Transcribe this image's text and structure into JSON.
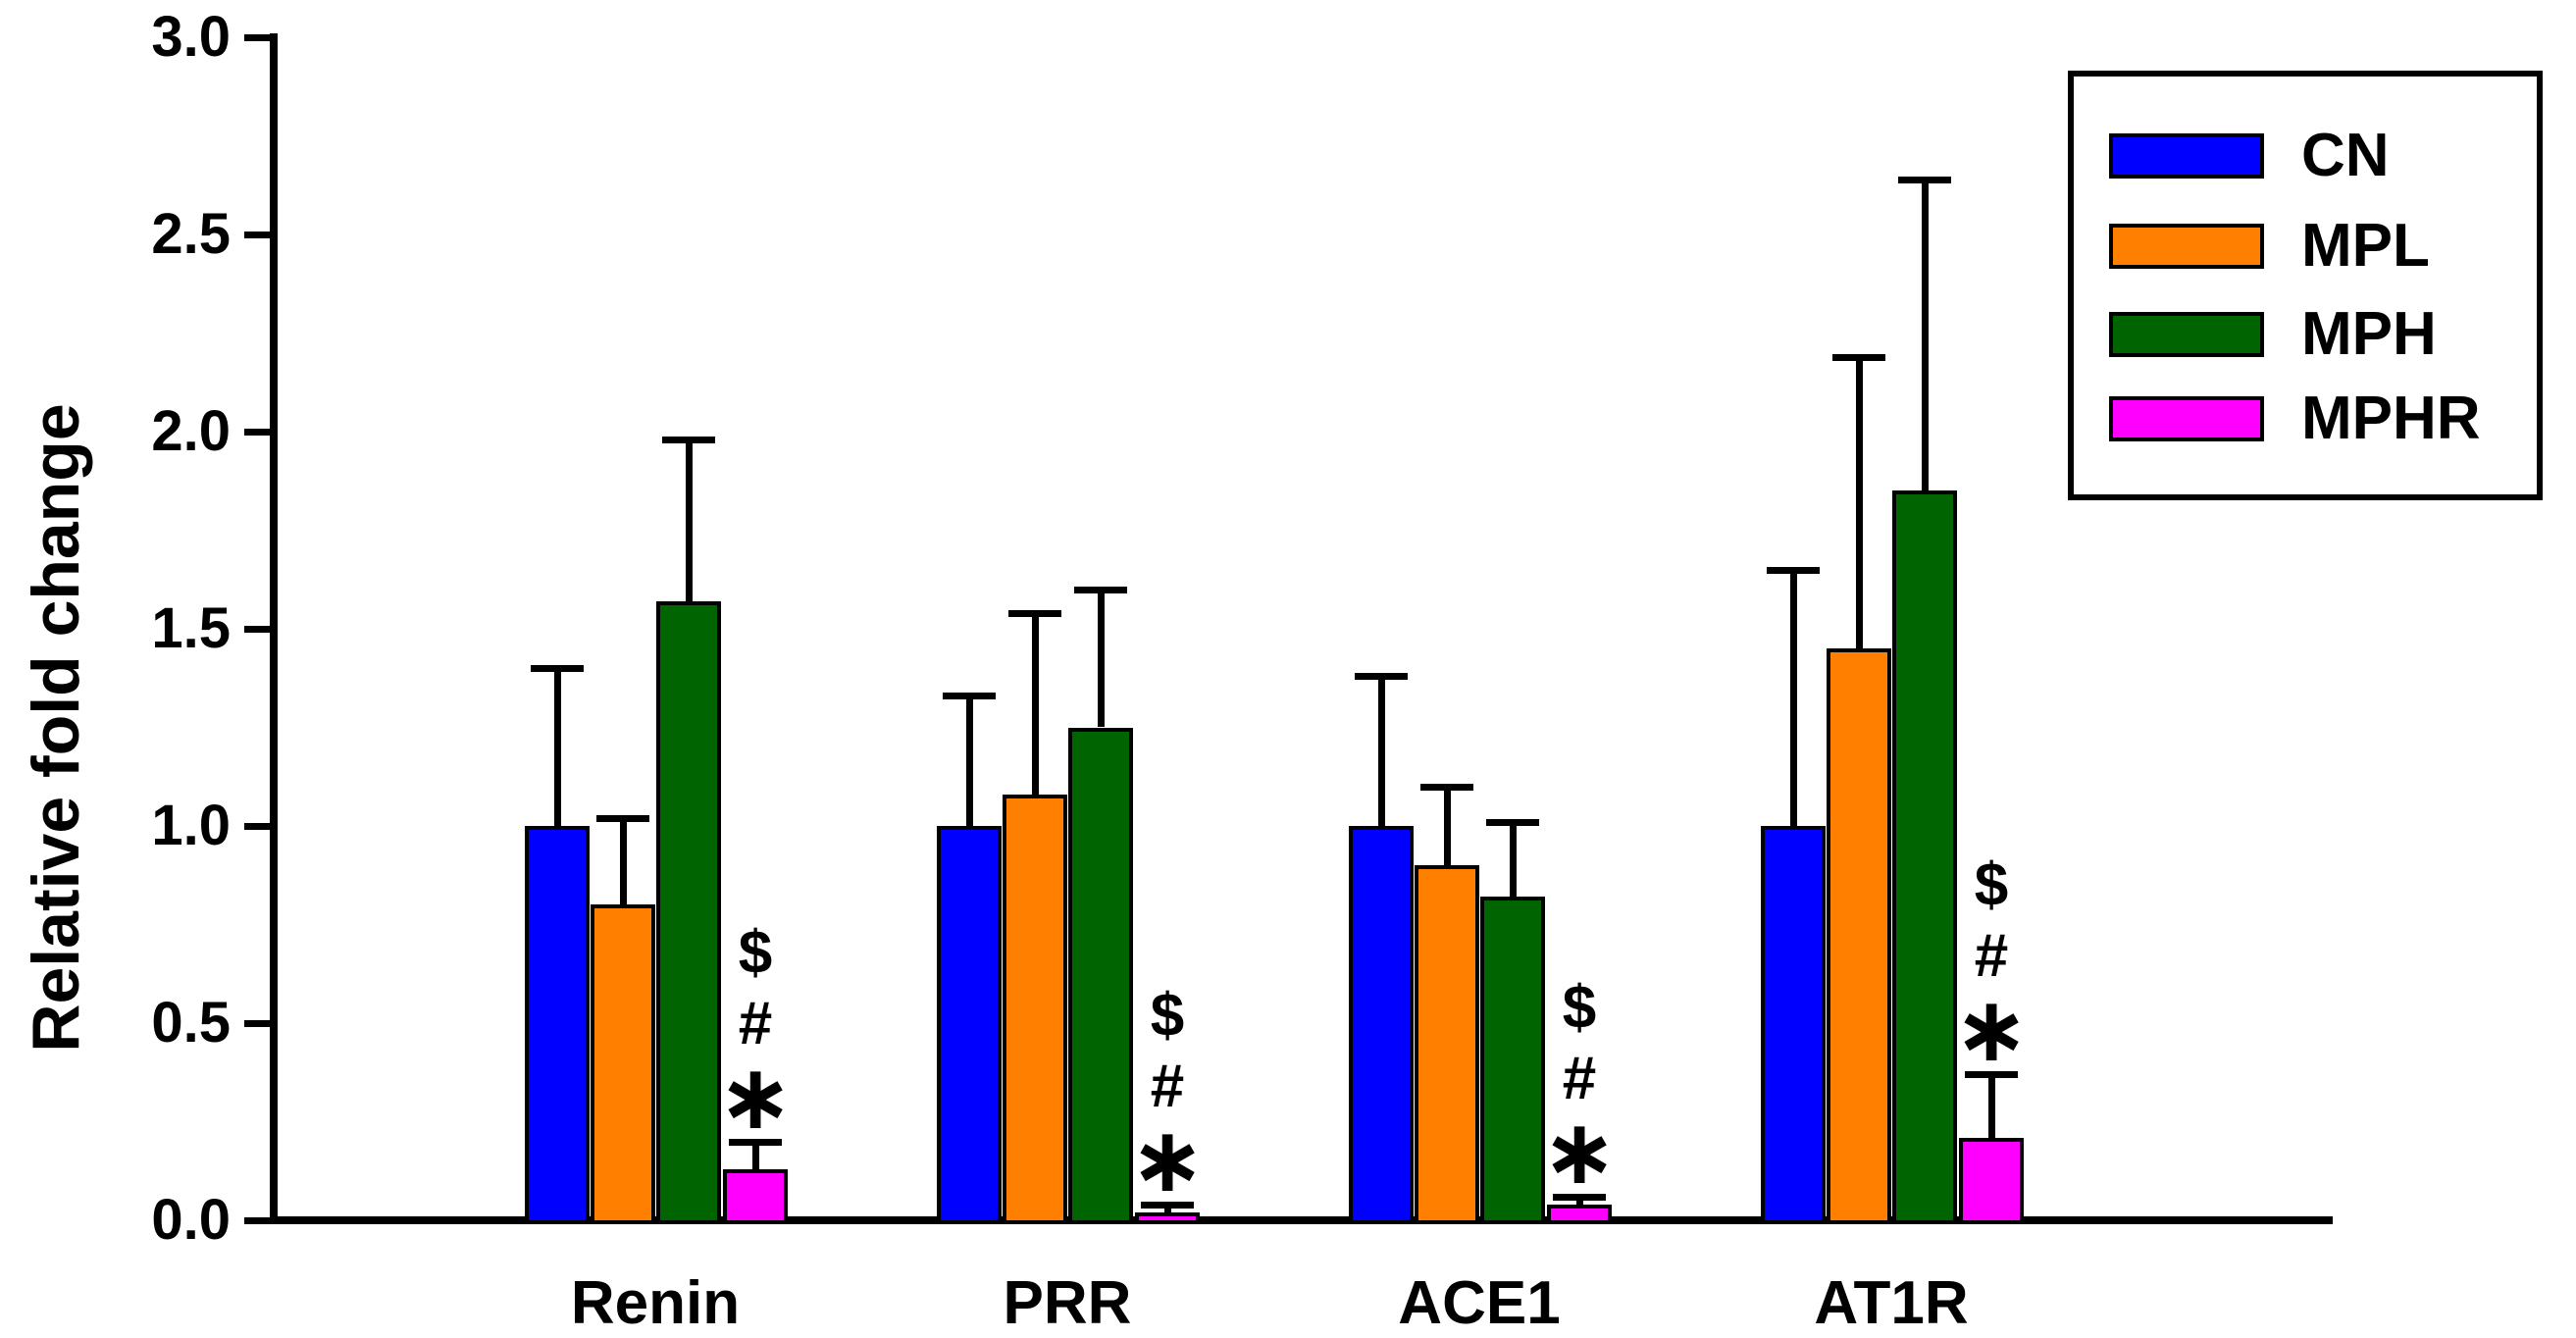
{
  "chart_data": {
    "type": "bar",
    "title": "",
    "ylabel": "Relative fold change",
    "xlabel": "",
    "ylim": [
      0.0,
      3.0
    ],
    "ytick_step": 0.5,
    "ytick_labels": [
      "0.0",
      "0.5",
      "1.0",
      "1.5",
      "2.0",
      "2.5",
      "3.0"
    ],
    "grid": false,
    "legend_position": "top-right",
    "categories": [
      "Renin",
      "PRR",
      "ACE1",
      "AT1R"
    ],
    "series": [
      {
        "name": "CN",
        "color": "#0000FF",
        "values": [
          1.0,
          1.0,
          1.0,
          1.0
        ],
        "errors": [
          0.4,
          0.33,
          0.38,
          0.65
        ]
      },
      {
        "name": "MPL",
        "color": "#FF8000",
        "values": [
          0.8,
          1.08,
          0.9,
          1.45
        ],
        "errors": [
          0.22,
          0.46,
          0.2,
          0.74
        ]
      },
      {
        "name": "MPH",
        "color": "#006400",
        "values": [
          1.57,
          1.25,
          0.82,
          1.85
        ],
        "errors": [
          0.41,
          0.35,
          0.19,
          0.79
        ]
      },
      {
        "name": "MPHR",
        "color": "#FF00FF",
        "values": [
          0.13,
          0.02,
          0.04,
          0.21
        ],
        "errors": [
          0.07,
          0.02,
          0.02,
          0.16
        ]
      }
    ],
    "error_bars": "upper only, black caps",
    "sig_symbols": [
      "$",
      "#",
      "*"
    ],
    "sig_symbols_apply_to_series": "MPHR",
    "sig_symbols_groups": [
      "Renin",
      "PRR",
      "ACE1",
      "AT1R"
    ],
    "axis_color": "#000000",
    "bar_outline_color": "#000000"
  }
}
